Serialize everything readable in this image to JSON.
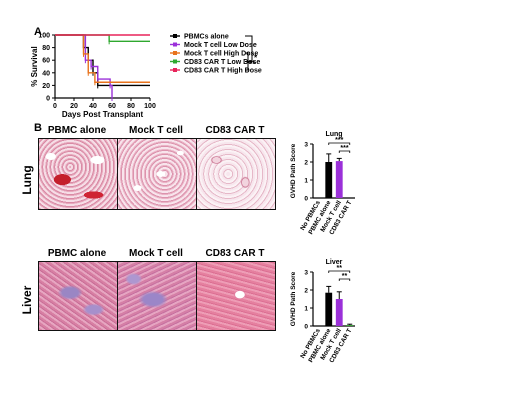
{
  "panel_a_letter": "A",
  "panel_b_letter": "B",
  "chart_data": [
    {
      "type": "line",
      "panel": "A",
      "xlabel": "Days Post Transplant",
      "ylabel": "% Survival",
      "xlim": [
        0,
        100
      ],
      "ylim": [
        0,
        100
      ],
      "xticks": [
        "0",
        "20",
        "40",
        "60",
        "80",
        "100"
      ],
      "yticks": [
        "0",
        "20",
        "40",
        "60",
        "80",
        "100"
      ],
      "step": true,
      "grid": false,
      "legend": "right",
      "significance": [
        "*",
        "**"
      ],
      "series": [
        {
          "name": "PBMCs alone",
          "color": "#000000",
          "x": [
            0,
            28,
            30,
            35,
            40,
            45,
            100
          ],
          "y": [
            100,
            100,
            80,
            60,
            40,
            20,
            20
          ]
        },
        {
          "name": "Mock T cell Low Dose",
          "color": "#9b30d9",
          "x": [
            0,
            27,
            32,
            38,
            45,
            58,
            60
          ],
          "y": [
            100,
            100,
            60,
            50,
            30,
            20,
            0
          ]
        },
        {
          "name": "Mock T cell High Dose",
          "color": "#e8731c",
          "x": [
            0,
            25,
            30,
            35,
            42,
            100
          ],
          "y": [
            100,
            100,
            70,
            40,
            25,
            25
          ]
        },
        {
          "name": "CD83 CAR T Low Dose",
          "color": "#2fa82f",
          "x": [
            0,
            57,
            100
          ],
          "y": [
            100,
            90,
            90
          ]
        },
        {
          "name": "CD83 CAR T High Dose",
          "color": "#e8245a",
          "x": [
            0,
            100
          ],
          "y": [
            100,
            100
          ]
        }
      ]
    },
    {
      "type": "bar",
      "title": "Lung",
      "ylabel": "GVHD Path Score",
      "ylim": [
        0,
        3
      ],
      "yticks": [
        "0",
        "1",
        "2",
        "3"
      ],
      "categories": [
        "No PBMCs",
        "PBMC alone",
        "Mock T cell",
        "CD83 CAR T"
      ],
      "values": [
        0,
        2.0,
        2.05,
        0
      ],
      "errors": [
        0,
        0.45,
        0.15,
        0
      ],
      "colors": [
        "#000000",
        "#000000",
        "#9b30d9",
        "#2fa82f"
      ],
      "significance": [
        "***",
        "***"
      ]
    },
    {
      "type": "bar",
      "title": "Liver",
      "ylabel": "GVHD Path Score",
      "ylim": [
        0,
        3
      ],
      "yticks": [
        "0",
        "1",
        "2",
        "3"
      ],
      "categories": [
        "No PBMCs",
        "PBMC alone",
        "Mock T cell",
        "CD83 CAR T"
      ],
      "values": [
        0,
        1.85,
        1.5,
        0.05
      ],
      "errors": [
        0,
        0.35,
        0.4,
        0.05
      ],
      "colors": [
        "#000000",
        "#000000",
        "#9b30d9",
        "#2fa82f"
      ],
      "significance": [
        "**",
        "**"
      ]
    }
  ],
  "histology": {
    "columns": [
      "PBMC alone",
      "Mock T cell",
      "CD83 CAR T"
    ],
    "rows": [
      "Lung",
      "Liver"
    ]
  }
}
